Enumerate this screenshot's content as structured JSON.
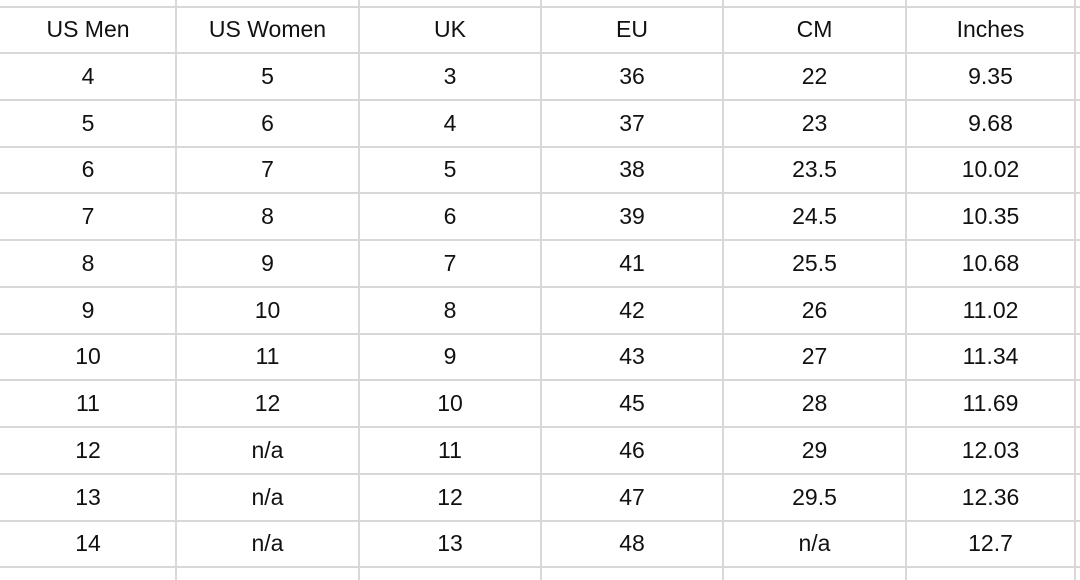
{
  "table": {
    "header": [
      "US Men",
      "US Women",
      "UK",
      "EU",
      "CM",
      "Inches"
    ],
    "rows": [
      [
        "4",
        "5",
        "3",
        "36",
        "22",
        "9.35"
      ],
      [
        "5",
        "6",
        "4",
        "37",
        "23",
        "9.68"
      ],
      [
        "6",
        "7",
        "5",
        "38",
        "23.5",
        "10.02"
      ],
      [
        "7",
        "8",
        "6",
        "39",
        "24.5",
        "10.35"
      ],
      [
        "8",
        "9",
        "7",
        "41",
        "25.5",
        "10.68"
      ],
      [
        "9",
        "10",
        "8",
        "42",
        "26",
        "11.02"
      ],
      [
        "10",
        "11",
        "9",
        "43",
        "27",
        "11.34"
      ],
      [
        "11",
        "12",
        "10",
        "45",
        "28",
        "11.69"
      ],
      [
        "12",
        "n/a",
        "11",
        "46",
        "29",
        "12.03"
      ],
      [
        "13",
        "n/a",
        "12",
        "47",
        "29.5",
        "12.36"
      ],
      [
        "14",
        "n/a",
        "13",
        "48",
        "n/a",
        "12.7"
      ]
    ]
  }
}
